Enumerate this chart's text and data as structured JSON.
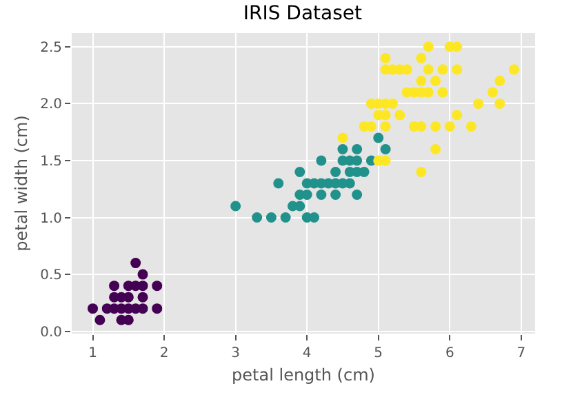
{
  "chart_data": {
    "type": "scatter",
    "title": "IRIS Dataset",
    "xlabel": "petal length (cm)",
    "ylabel": "petal width (cm)",
    "xlim": [
      0.705,
      7.195
    ],
    "xticks": [
      1,
      2,
      3,
      4,
      5,
      6,
      7
    ],
    "ylim": [
      -0.02,
      2.62
    ],
    "yticks": [
      {
        "value": 0,
        "label": "0.0"
      },
      {
        "value": 0.5,
        "label": "0.5"
      },
      {
        "value": 1,
        "label": "1.0"
      },
      {
        "value": 1.5,
        "label": "1.5"
      },
      {
        "value": 2,
        "label": "2.0"
      },
      {
        "value": 2.5,
        "label": "2.5"
      }
    ],
    "grid": true,
    "marker": "circle",
    "series": [
      {
        "color": "#440154",
        "x": [
          1.0,
          1.1,
          1.2,
          1.3,
          1.3,
          1.3,
          1.4,
          1.4,
          1.4,
          1.5,
          1.5,
          1.5,
          1.5,
          1.6,
          1.6,
          1.6,
          1.7,
          1.7,
          1.7,
          1.7,
          1.9,
          1.9
        ],
        "values": [
          0.2,
          0.1,
          0.2,
          0.2,
          0.3,
          0.4,
          0.1,
          0.2,
          0.3,
          0.1,
          0.2,
          0.3,
          0.4,
          0.2,
          0.4,
          0.6,
          0.2,
          0.3,
          0.4,
          0.5,
          0.2,
          0.4
        ]
      },
      {
        "color": "#21918c",
        "x": [
          3.0,
          3.3,
          3.5,
          3.6,
          3.7,
          3.8,
          3.9,
          3.9,
          3.9,
          4.0,
          4.0,
          4.0,
          4.1,
          4.1,
          4.2,
          4.2,
          4.2,
          4.3,
          4.4,
          4.4,
          4.4,
          4.5,
          4.5,
          4.5,
          4.6,
          4.6,
          4.6,
          4.7,
          4.7,
          4.7,
          4.7,
          4.8,
          4.9,
          5.0,
          5.1
        ],
        "values": [
          1.1,
          1.0,
          1.0,
          1.3,
          1.0,
          1.1,
          1.1,
          1.2,
          1.4,
          1.0,
          1.2,
          1.3,
          1.0,
          1.3,
          1.2,
          1.3,
          1.5,
          1.3,
          1.2,
          1.3,
          1.4,
          1.3,
          1.5,
          1.6,
          1.3,
          1.4,
          1.5,
          1.2,
          1.4,
          1.5,
          1.6,
          1.4,
          1.5,
          1.7,
          1.6
        ]
      },
      {
        "color": "#fde725",
        "x": [
          4.5,
          4.8,
          4.9,
          4.9,
          5.0,
          5.0,
          5.0,
          5.1,
          5.1,
          5.1,
          5.1,
          5.1,
          5.1,
          5.2,
          5.2,
          5.3,
          5.3,
          5.4,
          5.4,
          5.5,
          5.5,
          5.6,
          5.6,
          5.6,
          5.6,
          5.6,
          5.7,
          5.7,
          5.7,
          5.8,
          5.8,
          5.8,
          5.9,
          5.9,
          6.0,
          6.0,
          6.1,
          6.1,
          6.1,
          6.3,
          6.4,
          6.6,
          6.7,
          6.7,
          6.9
        ],
        "values": [
          1.7,
          1.8,
          1.8,
          2.0,
          1.5,
          1.9,
          2.0,
          1.5,
          1.8,
          1.9,
          2.0,
          2.3,
          2.4,
          2.0,
          2.3,
          1.9,
          2.3,
          2.1,
          2.3,
          1.8,
          2.1,
          1.4,
          1.8,
          2.1,
          2.2,
          2.4,
          2.1,
          2.3,
          2.5,
          1.6,
          1.8,
          2.2,
          2.1,
          2.3,
          1.8,
          2.5,
          1.9,
          2.3,
          2.5,
          1.8,
          2.0,
          2.1,
          2.0,
          2.2,
          2.3
        ]
      }
    ]
  }
}
